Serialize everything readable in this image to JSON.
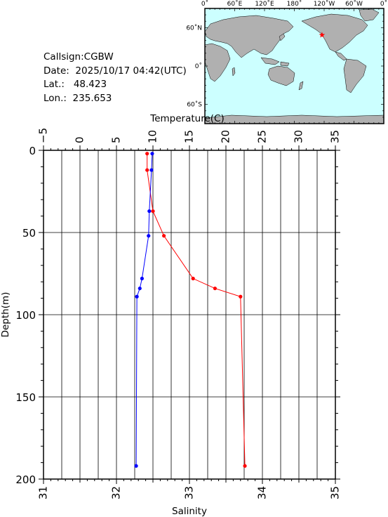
{
  "station": {
    "callsign_label": "Callsign:",
    "callsign": "CGBW",
    "date_label": "Date:",
    "date": "2025/10/17 04:42(UTC)",
    "lat_label": "Lat.:",
    "lat": "48.423",
    "lon_label": "Lon.:",
    "lon": "235.653"
  },
  "map": {
    "lon_ticks": [
      "0˚",
      "60˚E",
      "120˚E",
      "180˚",
      "120˚W",
      "60˚W",
      "0˚"
    ],
    "lat_ticks": [
      "60˚N",
      "0˚",
      "60˚S"
    ],
    "ocean_color": "#ccffff",
    "land_color": "#b0b0b0",
    "marker_color": "#ff0000",
    "marker_lon": 235.653,
    "marker_lat": 48.423
  },
  "chart_data": {
    "type": "line",
    "top_axis_label": "Temperature(C)",
    "bottom_axis_label": "Salinity",
    "ylabel": "Depth(m)",
    "temperature_range": [
      -5,
      35
    ],
    "temperature_ticks": [
      "−5",
      "0",
      "5",
      "10",
      "15",
      "20",
      "25",
      "30",
      "35"
    ],
    "salinity_range": [
      31,
      35
    ],
    "salinity_ticks": [
      "31",
      "32",
      "33",
      "34",
      "35"
    ],
    "depth_range": [
      0,
      200
    ],
    "depth_ticks": [
      "0",
      "50",
      "100",
      "150",
      "200"
    ],
    "series": [
      {
        "variable": "temperature",
        "color": "#ff0000",
        "points": [
          {
            "x": 9.2,
            "depth": 2
          },
          {
            "x": 9.2,
            "depth": 12
          },
          {
            "x": 10.0,
            "depth": 37
          },
          {
            "x": 11.5,
            "depth": 52
          },
          {
            "x": 15.5,
            "depth": 78
          },
          {
            "x": 18.5,
            "depth": 84
          },
          {
            "x": 22.0,
            "depth": 89
          },
          {
            "x": 22.6,
            "depth": 192
          }
        ]
      },
      {
        "variable": "salinity",
        "color": "#0000ff",
        "points": [
          {
            "x": 32.49,
            "depth": 2
          },
          {
            "x": 32.48,
            "depth": 12
          },
          {
            "x": 32.45,
            "depth": 37
          },
          {
            "x": 32.44,
            "depth": 52
          },
          {
            "x": 32.35,
            "depth": 78
          },
          {
            "x": 32.32,
            "depth": 84
          },
          {
            "x": 32.28,
            "depth": 89
          },
          {
            "x": 32.27,
            "depth": 192
          }
        ]
      }
    ]
  }
}
